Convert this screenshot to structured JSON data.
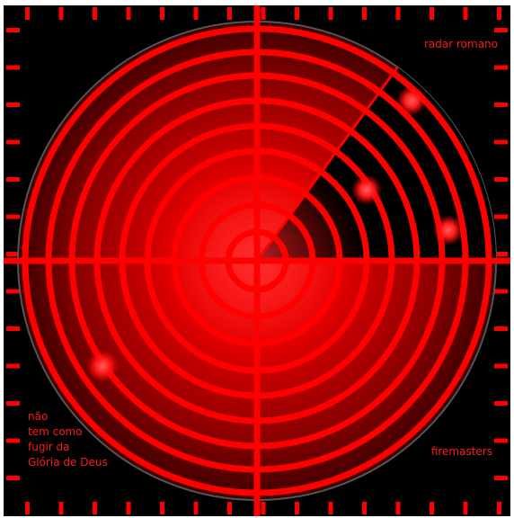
{
  "radar": {
    "title": "radar romano",
    "brand": "firemasters",
    "motto_lines": [
      "não",
      "tem como",
      "fugir da",
      "Glória de Deus"
    ],
    "colors": {
      "background": "#000000",
      "accent": "#ff0000",
      "dark_red": "#4a0000",
      "frame_border": "#ffffff"
    },
    "sweep_icon": "radar-sweep",
    "blip_count": 4
  }
}
